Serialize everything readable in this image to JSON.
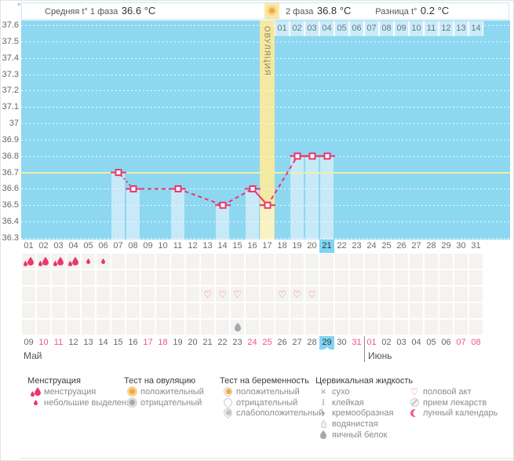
{
  "units": "°C",
  "header": {
    "avg_phase1_label": "Средняя t° 1 фаза",
    "avg_phase1_value": "36.6 °C",
    "phase2_label": "2 фаза",
    "phase2_value": "36.8 °C",
    "diff_label": "Разница t°",
    "diff_value": "0.2 °C",
    "ovulation_marker_icon": "ovulation-test-positive-icon"
  },
  "chart_data": {
    "type": "line",
    "title": "Basal temperature cycle chart",
    "ylabel": "°C",
    "ylim": [
      36.3,
      37.6
    ],
    "ytick_step": 0.1,
    "yticks": [
      "37.6",
      "37.5",
      "37.4",
      "37.3",
      "37.2",
      "37.1",
      "37",
      "36.9",
      "36.8",
      "36.7",
      "36.6",
      "36.5",
      "36.4",
      "36.3"
    ],
    "x_axis_cycle_days": [
      "01",
      "02",
      "03",
      "04",
      "05",
      "06",
      "07",
      "08",
      "09",
      "10",
      "11",
      "12",
      "13",
      "14",
      "15",
      "16",
      "17",
      "18",
      "19",
      "20",
      "21",
      "22",
      "23",
      "24",
      "25",
      "26",
      "27",
      "28",
      "29",
      "30",
      "31"
    ],
    "x_axis_dpo_labels": [
      "01",
      "02",
      "03",
      "04",
      "05",
      "06",
      "07",
      "08",
      "09",
      "10",
      "11",
      "12",
      "13",
      "14"
    ],
    "dpo_start_cycle_day": 18,
    "today_cycle_day": 21,
    "coverline_temp": 36.7,
    "ovulation_day": 17,
    "ovulation_band_label": "ОВУЛЯЦИЯ",
    "points": [
      {
        "day": 7,
        "temp": 36.7
      },
      {
        "day": 8,
        "temp": 36.6
      },
      {
        "day": 11,
        "temp": 36.6
      },
      {
        "day": 14,
        "temp": 36.5
      },
      {
        "day": 16,
        "temp": 36.6
      },
      {
        "day": 17,
        "temp": 36.5
      },
      {
        "day": 19,
        "temp": 36.8
      },
      {
        "day": 20,
        "temp": 36.8
      },
      {
        "day": 21,
        "temp": 36.8
      }
    ],
    "segments": [
      {
        "from": 7,
        "to": 8,
        "style": "dotted"
      },
      {
        "from": 8,
        "to": 11,
        "style": "dashed"
      },
      {
        "from": 11,
        "to": 14,
        "style": "dashed"
      },
      {
        "from": 14,
        "to": 16,
        "style": "dashed"
      },
      {
        "from": 16,
        "to": 17,
        "style": "solid"
      },
      {
        "from": 17,
        "to": 19,
        "style": "dashed"
      },
      {
        "from": 19,
        "to": 20,
        "style": "solid"
      },
      {
        "from": 20,
        "to": 21,
        "style": "solid"
      }
    ]
  },
  "events": {
    "menstruation_heavy_days": [
      1,
      2,
      3,
      4
    ],
    "menstruation_light_days": [
      5,
      6
    ],
    "intercourse_days": [
      13,
      14,
      15,
      18,
      19,
      20
    ],
    "egg_white_fluid_days": [
      15
    ]
  },
  "calendar": {
    "month_labels": [
      "Май",
      "Июнь"
    ],
    "today_date_label": "29",
    "row_dates": [
      {
        "label": "09",
        "month": "Май",
        "weekend": false,
        "today": false
      },
      {
        "label": "10",
        "month": "Май",
        "weekend": true,
        "today": false
      },
      {
        "label": "11",
        "month": "Май",
        "weekend": true,
        "today": false
      },
      {
        "label": "12",
        "month": "Май",
        "weekend": false,
        "today": false
      },
      {
        "label": "13",
        "month": "Май",
        "weekend": false,
        "today": false
      },
      {
        "label": "14",
        "month": "Май",
        "weekend": false,
        "today": false
      },
      {
        "label": "15",
        "month": "Май",
        "weekend": false,
        "today": false
      },
      {
        "label": "16",
        "month": "Май",
        "weekend": false,
        "today": false
      },
      {
        "label": "17",
        "month": "Май",
        "weekend": true,
        "today": false
      },
      {
        "label": "18",
        "month": "Май",
        "weekend": true,
        "today": false
      },
      {
        "label": "19",
        "month": "Май",
        "weekend": false,
        "today": false
      },
      {
        "label": "20",
        "month": "Май",
        "weekend": false,
        "today": false
      },
      {
        "label": "21",
        "month": "Май",
        "weekend": false,
        "today": false
      },
      {
        "label": "22",
        "month": "Май",
        "weekend": false,
        "today": false
      },
      {
        "label": "23",
        "month": "Май",
        "weekend": false,
        "today": false
      },
      {
        "label": "24",
        "month": "Май",
        "weekend": true,
        "today": false
      },
      {
        "label": "25",
        "month": "Май",
        "weekend": true,
        "today": false
      },
      {
        "label": "26",
        "month": "Май",
        "weekend": false,
        "today": false
      },
      {
        "label": "27",
        "month": "Май",
        "weekend": false,
        "today": false
      },
      {
        "label": "28",
        "month": "Май",
        "weekend": false,
        "today": false
      },
      {
        "label": "29",
        "month": "Май",
        "weekend": false,
        "today": true
      },
      {
        "label": "30",
        "month": "Май",
        "weekend": false,
        "today": false
      },
      {
        "label": "31",
        "month": "Май",
        "weekend": true,
        "today": false
      },
      {
        "label": "01",
        "month": "Июнь",
        "weekend": true,
        "today": false
      },
      {
        "label": "02",
        "month": "Июнь",
        "weekend": false,
        "today": false
      },
      {
        "label": "03",
        "month": "Июнь",
        "weekend": false,
        "today": false
      },
      {
        "label": "04",
        "month": "Июнь",
        "weekend": false,
        "today": false
      },
      {
        "label": "05",
        "month": "Июнь",
        "weekend": false,
        "today": false
      },
      {
        "label": "06",
        "month": "Июнь",
        "weekend": false,
        "today": false
      },
      {
        "label": "07",
        "month": "Июнь",
        "weekend": true,
        "today": false
      },
      {
        "label": "08",
        "month": "Июнь",
        "weekend": true,
        "today": false
      }
    ]
  },
  "legend": {
    "columns": [
      {
        "title": "Менструация",
        "items": [
          {
            "icon": "menstruation-heavy-icon",
            "label": "менструация"
          },
          {
            "icon": "menstruation-light-icon",
            "label": "небольшие выделения"
          }
        ]
      },
      {
        "title": "Тест на овуляцию",
        "items": [
          {
            "icon": "ovulation-test-positive-icon",
            "label": "положительный"
          },
          {
            "icon": "ovulation-test-negative-icon",
            "label": "отрицательный"
          }
        ]
      },
      {
        "title": "Тест на беременность",
        "items": [
          {
            "icon": "pregnancy-test-positive-icon",
            "label": "положительный"
          },
          {
            "icon": "pregnancy-test-negative-icon",
            "label": "отрицательный"
          },
          {
            "icon": "pregnancy-test-weak-icon",
            "label": "слабоположительный"
          }
        ]
      },
      {
        "title": "Цервикальная жидкость",
        "items": [
          {
            "icon": "dry-icon",
            "label": "сухо"
          },
          {
            "icon": "sticky-icon",
            "label": "клейкая"
          },
          {
            "icon": "creamy-icon",
            "label": "кремообразная"
          },
          {
            "icon": "watery-icon",
            "label": "водянистая"
          },
          {
            "icon": "egg-white-icon",
            "label": "яичный белок"
          }
        ]
      },
      {
        "title": "",
        "items": [
          {
            "icon": "intercourse-heart-icon",
            "label": "половой акт"
          },
          {
            "icon": "medication-icon",
            "label": "прием лекарств"
          },
          {
            "icon": "lunar-calendar-icon",
            "label": "лунный календарь"
          }
        ]
      }
    ]
  },
  "colors": {
    "accent_pink": "#e8386c",
    "chart_blue": "#8ed7f1",
    "bar_blue": "#c7e9f8",
    "band_yellow": "#f3e9a3",
    "band_bar_yellow": "#f9f3c4",
    "coverline_yellow": "#eef0a6",
    "highlight_blue": "#7ed5f2",
    "weekend_red": "#f2557d",
    "test_orange": "#f3a93c",
    "fluid_gray": "#a3a9ae"
  }
}
